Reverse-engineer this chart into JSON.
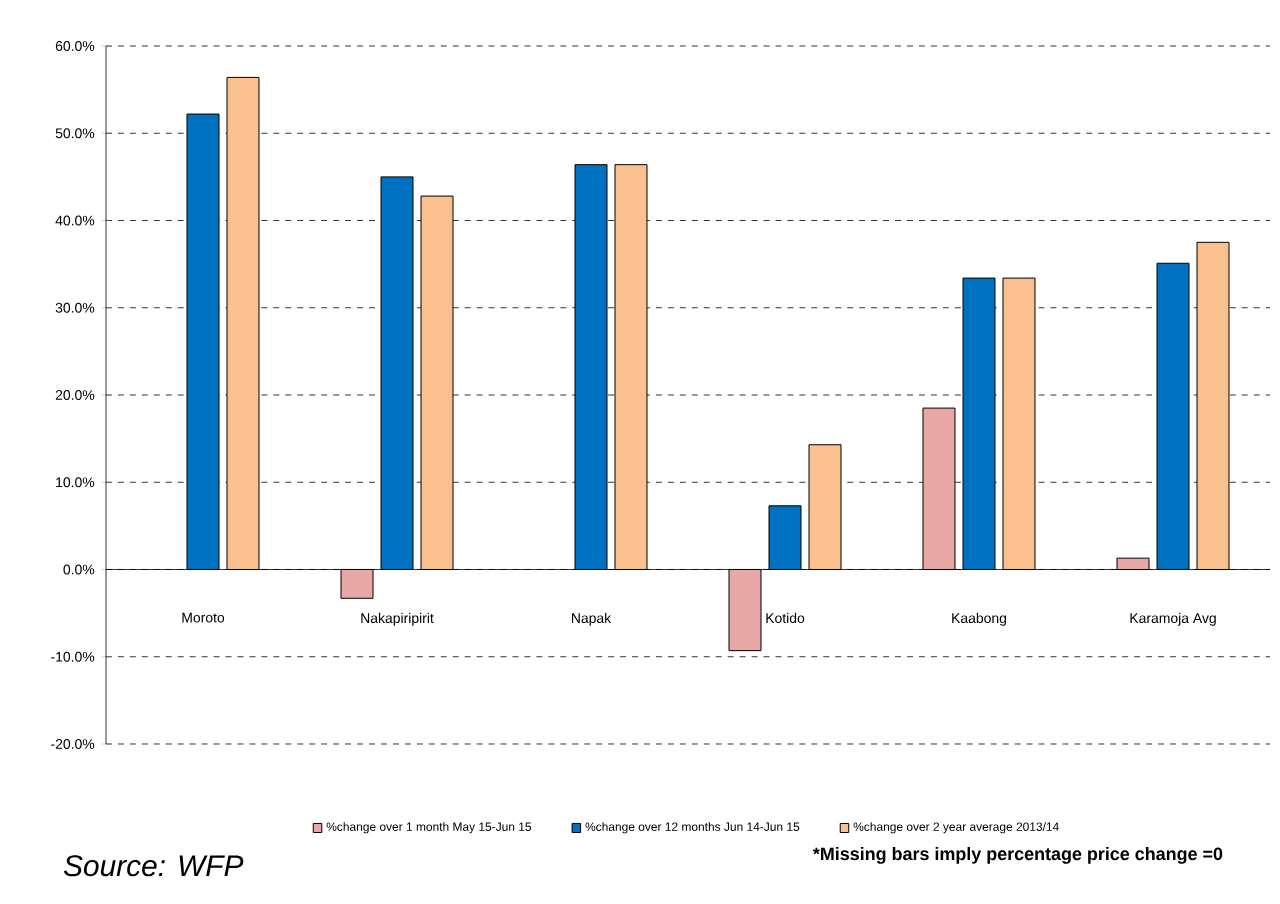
{
  "chart_data": {
    "type": "bar",
    "categories": [
      "Moroto",
      "Nakapiripirit",
      "Napak",
      "Kotido",
      "Kaabong",
      "Karamoja Avg"
    ],
    "series": [
      {
        "name": "%change over 1 month May 15-Jun 15",
        "color": "#e8a8a6",
        "values": [
          null,
          -3.3,
          null,
          -9.3,
          18.5,
          1.3
        ]
      },
      {
        "name": "%change over 12 months  Jun 14-Jun 15",
        "color": "#0070c0",
        "values": [
          52.2,
          45.0,
          46.4,
          7.3,
          33.4,
          35.1
        ]
      },
      {
        "name": "%change over 2 year average 2013/14",
        "color": "#fac090",
        "values": [
          56.4,
          42.8,
          46.4,
          14.3,
          33.4,
          37.5
        ]
      }
    ],
    "ylim": [
      -20,
      60
    ],
    "yticks": [
      {
        "value": -20,
        "label": "-20.0%"
      },
      {
        "value": -10,
        "label": "-10.0%"
      },
      {
        "value": 0,
        "label": "0.0%"
      },
      {
        "value": 10,
        "label": "10.0%"
      },
      {
        "value": 20,
        "label": "20.0%"
      },
      {
        "value": 30,
        "label": "30.0%"
      },
      {
        "value": 40,
        "label": "40.0%"
      },
      {
        "value": 50,
        "label": "50.0%"
      },
      {
        "value": 60,
        "label": "60.0%"
      }
    ],
    "grid": "y",
    "legend": "bottom",
    "annotations": [
      "Source: WFP",
      "*Missing bars imply percentage price change =0"
    ]
  }
}
